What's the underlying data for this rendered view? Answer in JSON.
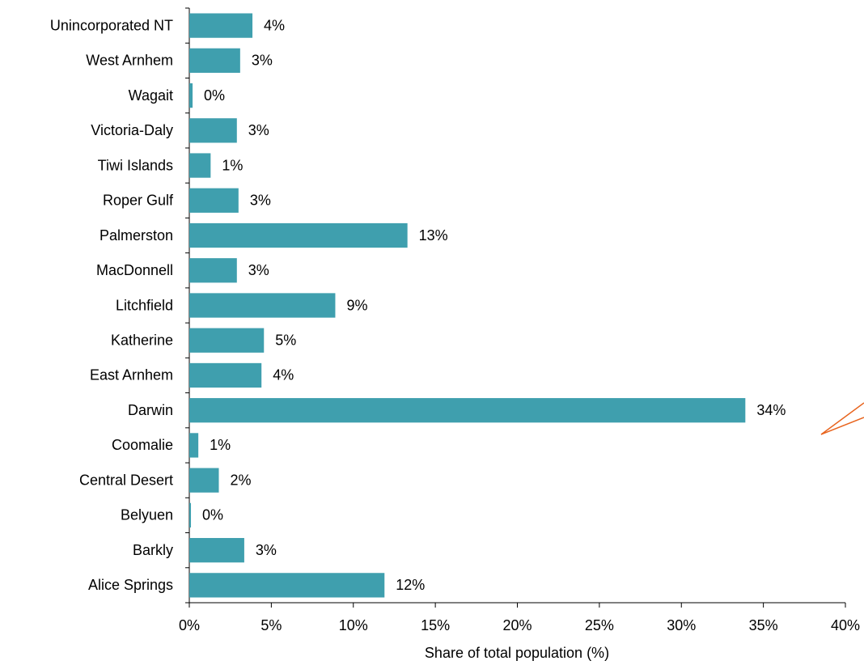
{
  "chart_data": {
    "type": "barh",
    "xlabel": "Share of total population (%)",
    "categories": [
      "Unincorporated NT",
      "West Arnhem",
      "Wagait",
      "Victoria-Daly",
      "Tiwi Islands",
      "Roper Gulf",
      "Palmerston",
      "MacDonnell",
      "Litchfield",
      "Katherine",
      "East Arnhem",
      "Darwin",
      "Coomalie",
      "Central Desert",
      "Belyuen",
      "Barkly",
      "Alice Springs"
    ],
    "values": [
      3.85,
      3.1,
      0.2,
      2.9,
      1.3,
      3.0,
      13.3,
      2.9,
      8.9,
      4.55,
      4.4,
      33.9,
      0.55,
      1.8,
      0.1,
      3.35,
      11.9
    ],
    "value_labels": [
      "4%",
      "3%",
      "0%",
      "3%",
      "1%",
      "3%",
      "13%",
      "3%",
      "9%",
      "5%",
      "4%",
      "34%",
      "1%",
      "2%",
      "0%",
      "3%",
      "12%"
    ],
    "color": "#3f9fae",
    "xlim": [
      0,
      40
    ],
    "xticks": [
      {
        "value": 0,
        "label": "0%"
      },
      {
        "value": 5,
        "label": "5%"
      },
      {
        "value": 10,
        "label": "10%"
      },
      {
        "value": 15,
        "label": "15%"
      },
      {
        "value": 20,
        "label": "20%"
      },
      {
        "value": 25,
        "label": "25%"
      },
      {
        "value": 30,
        "label": "30%"
      },
      {
        "value": 35,
        "label": "35%"
      },
      {
        "value": 40,
        "label": "40%"
      }
    ]
  }
}
